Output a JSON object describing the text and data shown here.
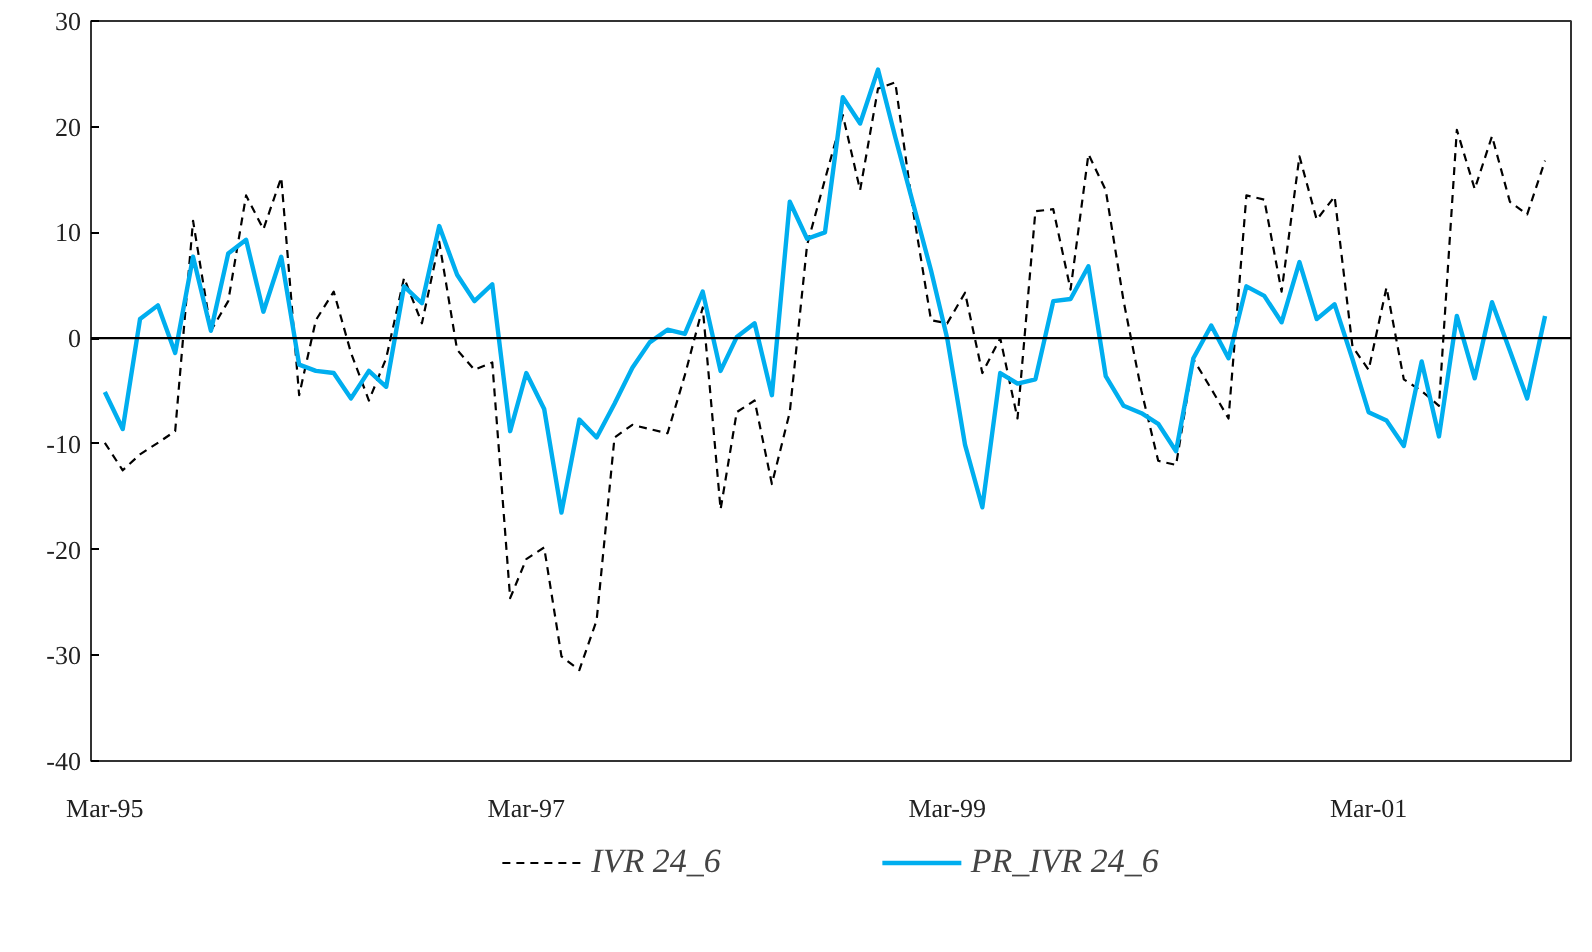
{
  "chart_data": {
    "type": "line",
    "x": [
      "1995-03",
      "1995-04",
      "1995-05",
      "1995-06",
      "1995-07",
      "1995-08",
      "1995-09",
      "1995-10",
      "1995-11",
      "1995-12",
      "1996-01",
      "1996-02",
      "1996-03",
      "1996-04",
      "1996-05",
      "1996-06",
      "1996-07",
      "1996-08",
      "1996-09",
      "1996-10",
      "1996-11",
      "1996-12",
      "1997-01",
      "1997-02",
      "1997-03",
      "1997-04",
      "1997-05",
      "1997-06",
      "1997-07",
      "1997-08",
      "1997-09",
      "1997-10",
      "1997-11",
      "1997-12",
      "1998-01",
      "1998-02",
      "1998-03",
      "1998-04",
      "1998-05",
      "1998-06",
      "1998-07",
      "1998-08",
      "1998-09",
      "1998-10",
      "1998-11",
      "1998-12",
      "1999-01",
      "1999-02",
      "1999-03",
      "1999-04",
      "1999-05",
      "1999-06",
      "1999-07",
      "1999-08",
      "1999-09",
      "1999-10",
      "1999-11",
      "1999-12",
      "2000-01",
      "2000-02",
      "2000-03",
      "2000-04",
      "2000-05",
      "2000-06",
      "2000-07",
      "2000-08",
      "2000-09",
      "2000-10",
      "2000-11",
      "2000-12",
      "2001-01",
      "2001-02",
      "2001-03",
      "2001-04",
      "2001-05",
      "2001-06",
      "2001-07",
      "2001-08",
      "2001-09",
      "2001-10",
      "2001-11",
      "2001-12",
      "2002-01"
    ],
    "series": [
      {
        "name": "IVR 24_6",
        "color": "#000000",
        "line_style": "dashed",
        "values": [
          -9.9,
          -12.5,
          -11.0,
          -9.9,
          -8.8,
          11.1,
          0.7,
          3.5,
          13.5,
          10.3,
          15.2,
          -5.4,
          1.7,
          4.4,
          -1.4,
          -5.9,
          -1.9,
          5.7,
          1.4,
          9.1,
          -1.1,
          -3.0,
          -2.3,
          -24.6,
          -20.9,
          -19.8,
          -30.1,
          -31.4,
          -26.7,
          -9.4,
          -8.2,
          -8.6,
          -9.0,
          -3.5,
          2.9,
          -16.2,
          -7.0,
          -5.9,
          -13.8,
          -7.0,
          8.8,
          15.0,
          21.1,
          14.0,
          23.6,
          24.2,
          12.0,
          1.7,
          1.4,
          4.3,
          -3.3,
          0.0,
          -7.6,
          12.0,
          12.2,
          4.6,
          17.4,
          14.0,
          3.5,
          -5.0,
          -11.6,
          -12.0,
          -2.0,
          -4.8,
          -7.6,
          13.5,
          13.1,
          4.4,
          17.2,
          11.2,
          13.4,
          -0.8,
          -3.0,
          4.8,
          -3.9,
          -5.0,
          -6.4,
          19.7,
          14.1,
          19.1,
          12.9,
          11.7,
          16.8
        ]
      },
      {
        "name": "PR_IVR 24_6",
        "color": "#00aeef",
        "line_style": "solid",
        "values": [
          -5.1,
          -8.6,
          1.8,
          3.1,
          -1.4,
          7.7,
          0.7,
          8.0,
          9.3,
          2.5,
          7.7,
          -2.5,
          -3.1,
          -3.3,
          -5.7,
          -3.1,
          -4.6,
          4.9,
          3.3,
          10.6,
          6.0,
          3.5,
          5.1,
          -8.8,
          -3.3,
          -6.7,
          -16.5,
          -7.7,
          -9.4,
          -6.2,
          -2.8,
          -0.4,
          0.8,
          0.4,
          4.4,
          -3.1,
          0.1,
          1.4,
          -5.4,
          12.9,
          9.4,
          10.0,
          22.8,
          20.3,
          25.4,
          19.0,
          12.7,
          6.4,
          0.0,
          -10.1,
          -16.0,
          -3.3,
          -4.3,
          -3.9,
          3.5,
          3.7,
          6.8,
          -3.6,
          -6.4,
          -7.1,
          -8.1,
          -10.7,
          -1.9,
          1.2,
          -1.9,
          4.9,
          4.0,
          1.5,
          7.2,
          1.8,
          3.2,
          -2.0,
          -7.0,
          -7.8,
          -10.2,
          -2.2,
          -9.3,
          2.1,
          -3.8,
          3.4,
          -1.2,
          -5.7,
          2.1
        ]
      }
    ],
    "xlim": [
      "1995-02-05",
      "2002-02-15"
    ],
    "xticks": [
      {
        "value": "1995-03",
        "label": "Mar-95"
      },
      {
        "value": "1997-03",
        "label": "Mar-97"
      },
      {
        "value": "1999-03",
        "label": "Mar-99"
      },
      {
        "value": "2001-03",
        "label": "Mar-01"
      }
    ],
    "ylim": [
      -40,
      30
    ],
    "yticks": [
      -40,
      -30,
      -20,
      -10,
      0,
      10,
      20,
      30
    ],
    "ref_lines": [
      {
        "axis": "y",
        "value": 0,
        "color": "#000000",
        "line_style": "solid"
      }
    ],
    "grid": false,
    "legend": "bottom",
    "marker": "none"
  }
}
